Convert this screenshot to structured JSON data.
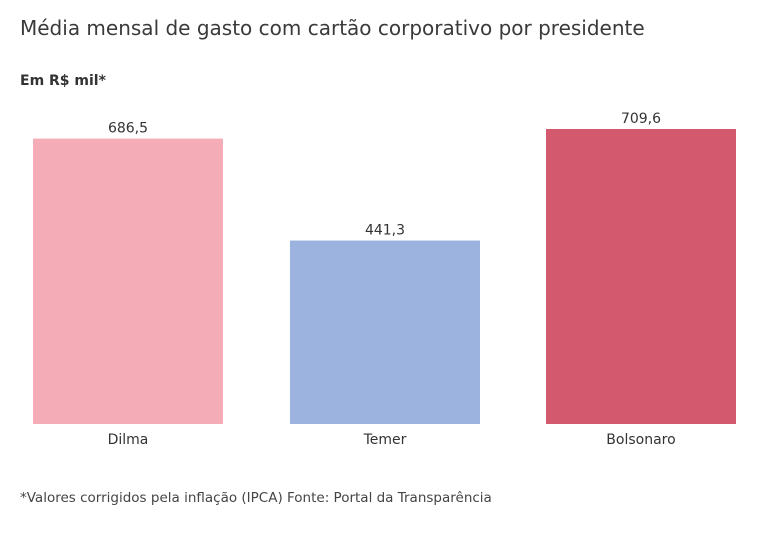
{
  "header": {
    "title": "Média mensal de gasto com cartão corporativo por presidente",
    "unit": "Em R$ mil*"
  },
  "footer": {
    "note": "*Valores corrigidos pela inflação (IPCA) Fonte: Portal da Transparência"
  },
  "chart_data": {
    "type": "bar",
    "title": "Média mensal de gasto com cartão corporativo por presidente",
    "ylabel": "Em R$ mil*",
    "xlabel": "",
    "categories": [
      "Dilma",
      "Temer",
      "Bolsonaro"
    ],
    "values": [
      686.5,
      441.3,
      709.6
    ],
    "value_labels": [
      "686,5",
      "441,3",
      "709,6"
    ],
    "colors": [
      "#f4adb7",
      "#9db3df",
      "#d35a6e"
    ],
    "ylim": [
      0,
      709.6
    ],
    "grid": false,
    "legend": "none"
  }
}
